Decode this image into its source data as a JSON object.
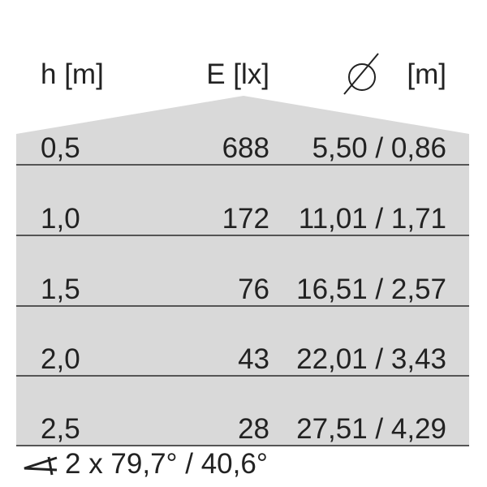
{
  "header": {
    "height": "h [m]",
    "illuminance": "E [lx]",
    "diameter_unit": "[m]",
    "diameter_icon": "diameter-icon"
  },
  "rows": [
    {
      "h": "0,5",
      "e": "688",
      "d": "5,50 / 0,86"
    },
    {
      "h": "1,0",
      "e": "172",
      "d": "11,01 / 1,71"
    },
    {
      "h": "1,5",
      "e": "76",
      "d": "16,51 / 2,57"
    },
    {
      "h": "2,0",
      "e": "43",
      "d": "22,01 / 3,43"
    },
    {
      "h": "2,5",
      "e": "28",
      "d": "27,51 / 4,29"
    }
  ],
  "footer": {
    "angle_icon": "angle-icon",
    "beam_angle": "2 x 79,7° / 40,6°"
  },
  "colors": {
    "fill": "#d9d9d9",
    "line": "#555555",
    "text": "#222222"
  }
}
